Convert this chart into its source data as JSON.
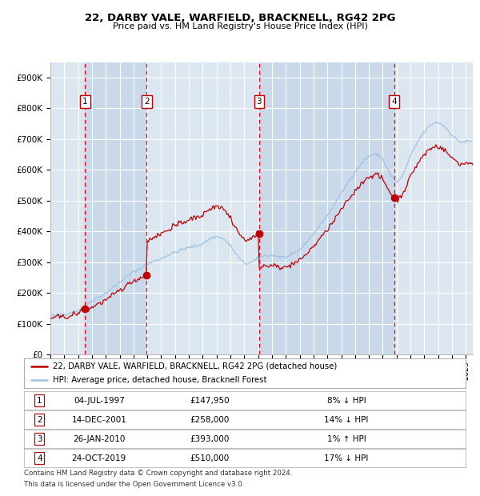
{
  "title": "22, DARBY VALE, WARFIELD, BRACKNELL, RG42 2PG",
  "subtitle": "Price paid vs. HM Land Registry's House Price Index (HPI)",
  "ylim": [
    0,
    950000
  ],
  "yticks": [
    0,
    100000,
    200000,
    300000,
    400000,
    500000,
    600000,
    700000,
    800000,
    900000
  ],
  "ytick_labels": [
    "£0",
    "£100K",
    "£200K",
    "£300K",
    "£400K",
    "£500K",
    "£600K",
    "£700K",
    "£800K",
    "£900K"
  ],
  "xlim_start": 1995.0,
  "xlim_end": 2025.5,
  "background_color": "#ffffff",
  "plot_bg_color": "#dce6f1",
  "grid_color": "#ffffff",
  "sale_line_color": "#c00000",
  "hpi_line_color": "#9dc3e6",
  "sale_dot_color": "#c00000",
  "vline_color": "#ff0000",
  "purchases": [
    {
      "num": 1,
      "date_str": "04-JUL-1997",
      "date_x": 1997.5,
      "price": 147950,
      "label": "£147,950",
      "pct": "8%",
      "dir": "↓"
    },
    {
      "num": 2,
      "date_str": "14-DEC-2001",
      "date_x": 2001.96,
      "price": 258000,
      "label": "£258,000",
      "pct": "14%",
      "dir": "↓"
    },
    {
      "num": 3,
      "date_str": "26-JAN-2010",
      "date_x": 2010.07,
      "price": 393000,
      "label": "£393,000",
      "pct": "1%",
      "dir": "↑"
    },
    {
      "num": 4,
      "date_str": "24-OCT-2019",
      "date_x": 2019.82,
      "price": 510000,
      "label": "£510,000",
      "pct": "17%",
      "dir": "↓"
    }
  ],
  "legend_sale_label": "22, DARBY VALE, WARFIELD, BRACKNELL, RG42 2PG (detached house)",
  "legend_hpi_label": "HPI: Average price, detached house, Bracknell Forest",
  "footer1": "Contains HM Land Registry data © Crown copyright and database right 2024.",
  "footer2": "This data is licensed under the Open Government Licence v3.0.",
  "shaded_regions": [
    [
      1995.0,
      1997.5
    ],
    [
      1997.5,
      2001.96
    ],
    [
      2001.96,
      2010.07
    ],
    [
      2010.07,
      2019.82
    ],
    [
      2019.82,
      2025.5
    ]
  ],
  "shaded_colors": [
    "#dce6f1",
    "#c9d9ea",
    "#dce6f1",
    "#c9d9ea",
    "#dce6f1"
  ],
  "hpi_anchors_x": [
    1995,
    1996,
    1997,
    1998,
    1999,
    2000,
    2001,
    2002,
    2003,
    2004,
    2005,
    2006,
    2007,
    2008,
    2009,
    2010,
    2011,
    2012,
    2013,
    2014,
    2015,
    2016,
    2017,
    2018,
    2019,
    2020,
    2021,
    2022,
    2023,
    2024,
    2025
  ],
  "hpi_anchors_y": [
    125000,
    132000,
    145000,
    175000,
    200000,
    235000,
    268000,
    293000,
    313000,
    332000,
    347000,
    362000,
    383000,
    352000,
    298000,
    312000,
    322000,
    317000,
    342000,
    393000,
    453000,
    523000,
    593000,
    643000,
    633000,
    562000,
    643000,
    723000,
    753000,
    713000,
    693000
  ]
}
